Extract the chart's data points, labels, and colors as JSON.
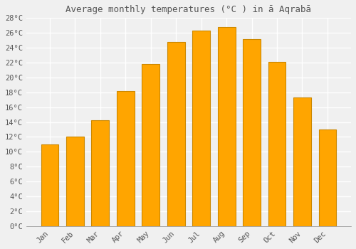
{
  "title": "Average monthly temperatures (°C ) in ā Aqrabā",
  "months": [
    "Jan",
    "Feb",
    "Mar",
    "Apr",
    "May",
    "Jun",
    "Jul",
    "Aug",
    "Sep",
    "Oct",
    "Nov",
    "Dec"
  ],
  "values": [
    11,
    12,
    14.2,
    18.2,
    21.8,
    24.8,
    26.3,
    26.8,
    25.2,
    22.1,
    17.3,
    13
  ],
  "bar_color": "#FFA500",
  "bar_edgecolor": "#CC8800",
  "background_color": "#F0F0F0",
  "plot_bg_color": "#F0F0F0",
  "grid_color": "#FFFFFF",
  "ylim": [
    0,
    28
  ],
  "yticks": [
    0,
    2,
    4,
    6,
    8,
    10,
    12,
    14,
    16,
    18,
    20,
    22,
    24,
    26,
    28
  ],
  "ylabel_suffix": "°C",
  "title_fontsize": 9,
  "tick_fontsize": 7.5,
  "title_color": "#555555",
  "tick_color": "#555555",
  "font_family": "monospace",
  "bar_width": 0.7
}
